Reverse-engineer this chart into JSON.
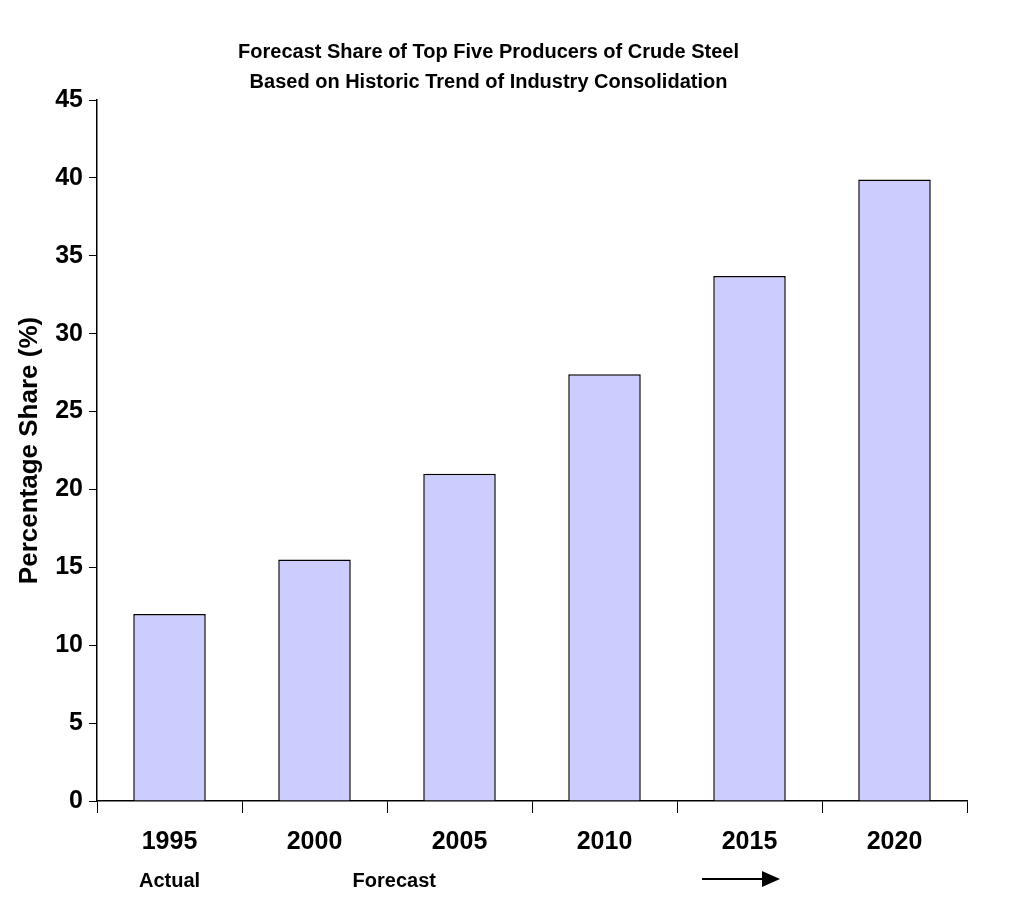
{
  "chart_data": {
    "type": "bar",
    "title": "Forecast Share of Top Five Producers of Crude Steel",
    "subtitle": "Based on Historic Trend of Industry Consolidation",
    "ylabel": "Percentage Share (%)",
    "categories": [
      "1995",
      "2000",
      "2005",
      "2010",
      "2015",
      "2020"
    ],
    "values": [
      12,
      15.5,
      21,
      27.4,
      33.7,
      39.9
    ],
    "color": "#ccccff",
    "ylim": [
      0,
      45
    ],
    "yticks": [
      0,
      5,
      10,
      15,
      20,
      25,
      30,
      35,
      40,
      45
    ],
    "grid": false,
    "legend": false,
    "annotations": [
      "Actual",
      "Forecast"
    ]
  }
}
